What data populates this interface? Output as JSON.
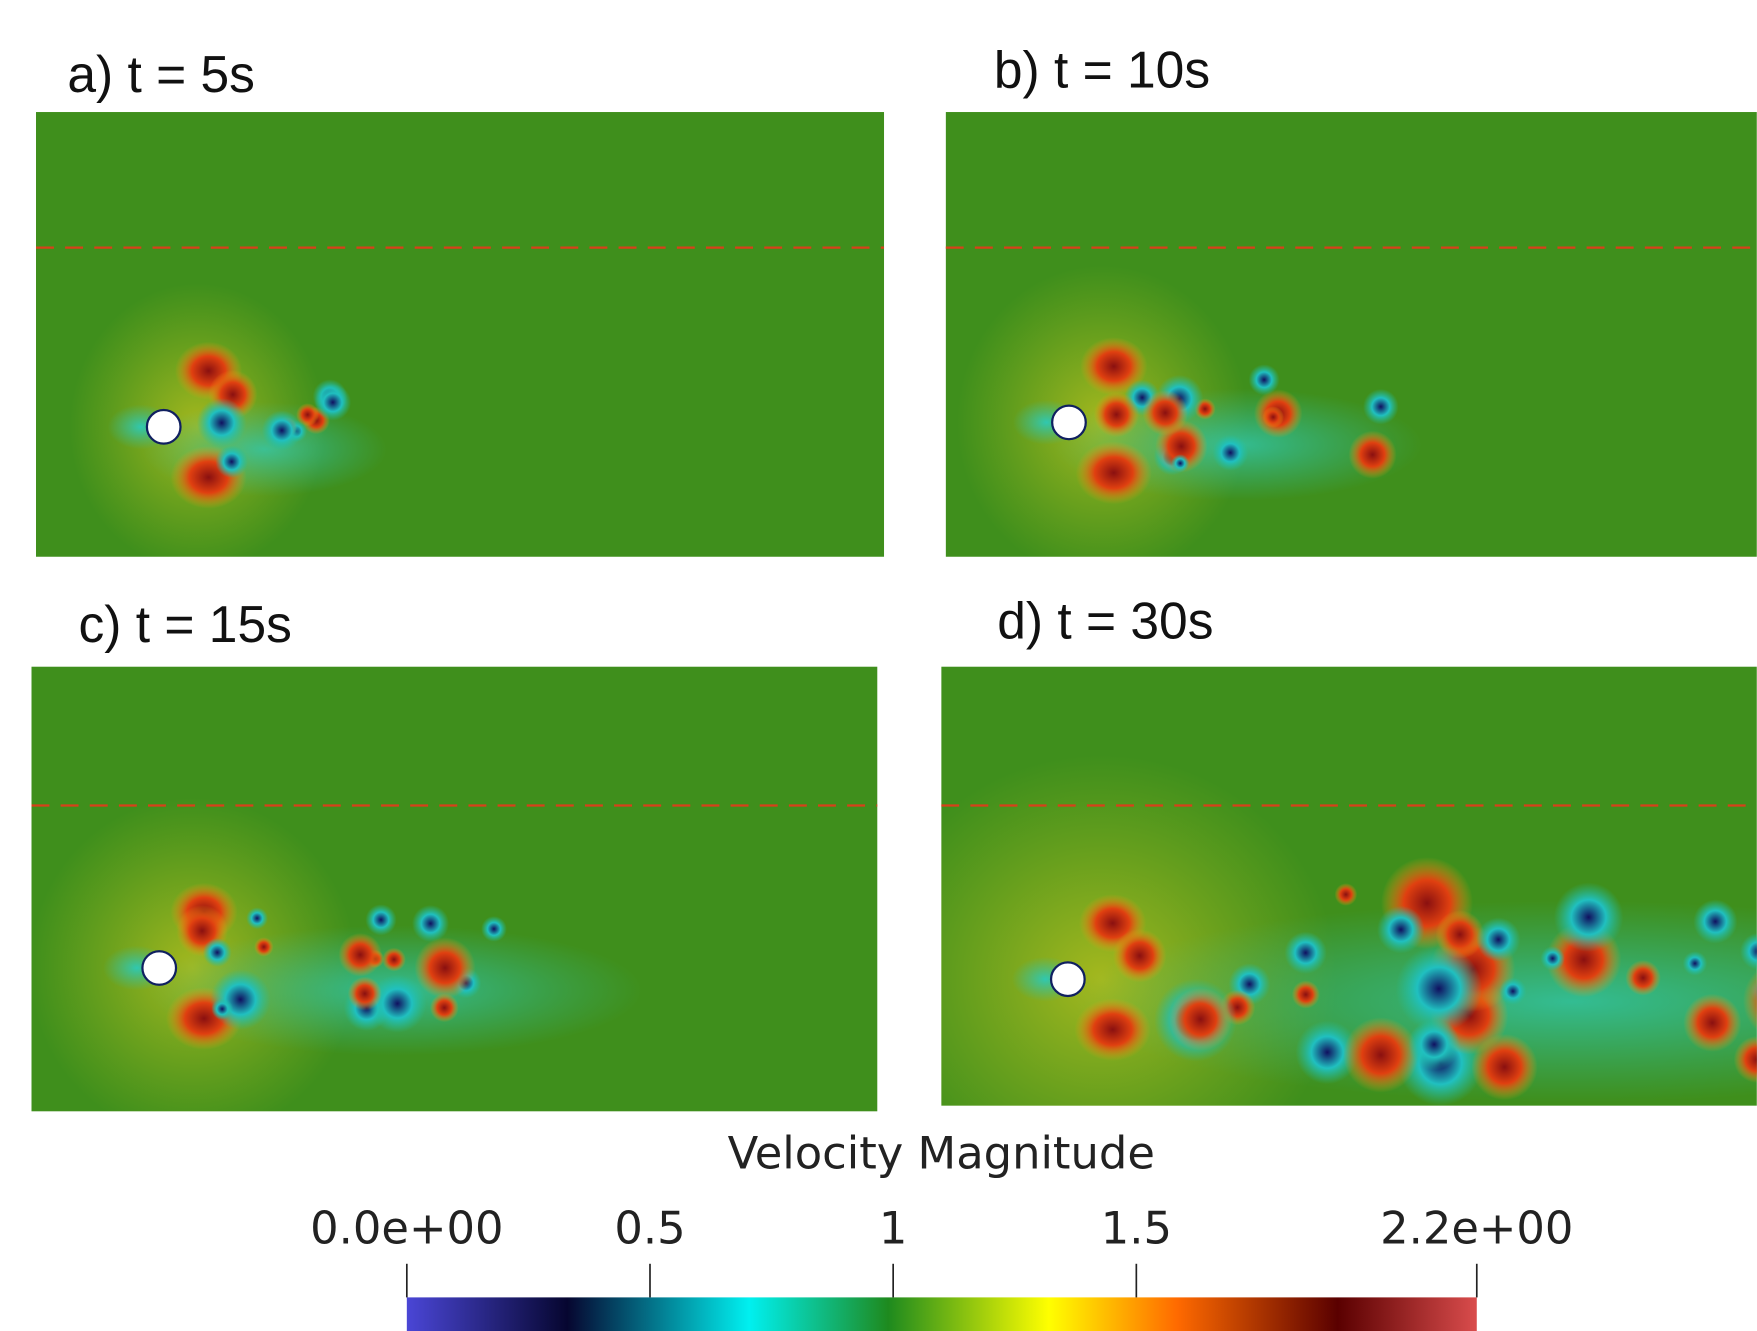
{
  "panels": [
    {
      "label": "a) t = 5s"
    },
    {
      "label": "b) t = 10s"
    },
    {
      "label": "c) t = 15s"
    },
    {
      "label": "d) t = 30s"
    }
  ],
  "colorbar": {
    "title": "Velocity Magnitude",
    "lim": [
      0,
      2.2
    ],
    "ticks": [
      {
        "value": 0,
        "label": "0.0e+00"
      },
      0.5,
      1,
      1.5,
      {
        "value": 2.2,
        "label": "2.2e+00"
      }
    ]
  }
}
